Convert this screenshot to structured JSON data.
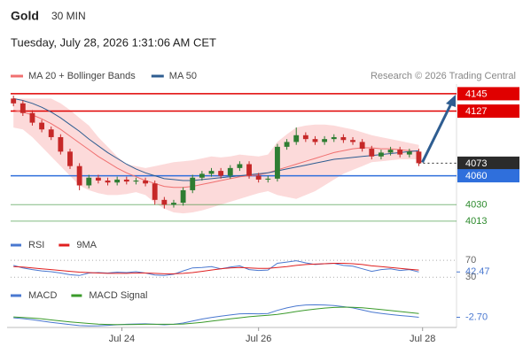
{
  "header": {
    "title": "Gold",
    "interval": "30 MIN",
    "timestamp": "Tuesday, July 28, 2026 1:31:06 AM CET",
    "credit": "Research © 2026 Trading Central"
  },
  "chart_data": [
    {
      "type": "candlestick",
      "xlim": [
        -0.3,
        47
      ],
      "xticks": [
        {
          "value": 11.5,
          "label": "Jul 24"
        },
        {
          "value": 26,
          "label": "Jul 26"
        },
        {
          "value": 43.4,
          "label": "Jul 28"
        }
      ],
      "ylim": [
        4000,
        4155
      ],
      "up_color": "#2e7d32",
      "down_color": "#c62828",
      "open": [
        4140,
        4135,
        4125,
        4115,
        4108,
        4100,
        4085,
        4070,
        4050,
        4058,
        4055,
        4053,
        4056,
        4054,
        4055,
        4052,
        4035,
        4030,
        4032,
        4045,
        4058,
        4062,
        4065,
        4060,
        4068,
        4072,
        4060,
        4056,
        4057,
        4090,
        4095,
        4102,
        4098,
        4095,
        4098,
        4100,
        4097,
        4095,
        4088,
        4080,
        4084,
        4087,
        4082,
        4085
      ],
      "high": [
        4143,
        4138,
        4128,
        4118,
        4111,
        4103,
        4088,
        4073,
        4061,
        4061,
        4058,
        4059,
        4059,
        4058,
        4058,
        4055,
        4038,
        4035,
        4048,
        4061,
        4065,
        4068,
        4068,
        4071,
        4075,
        4075,
        4063,
        4060,
        4093,
        4098,
        4110,
        4105,
        4101,
        4101,
        4103,
        4103,
        4100,
        4098,
        4091,
        4087,
        4090,
        4090,
        4088,
        4088
      ],
      "low": [
        4132,
        4122,
        4112,
        4105,
        4097,
        4082,
        4067,
        4045,
        4047,
        4052,
        4050,
        4050,
        4051,
        4051,
        4049,
        4030,
        4026,
        4027,
        4029,
        4042,
        4055,
        4059,
        4057,
        4057,
        4065,
        4057,
        4053,
        4053,
        4054,
        4087,
        4092,
        4095,
        4092,
        4092,
        4095,
        4094,
        4092,
        4085,
        4077,
        4077,
        4081,
        4079,
        4079,
        4070
      ],
      "close": [
        4135,
        4125,
        4115,
        4108,
        4100,
        4085,
        4070,
        4050,
        4058,
        4055,
        4053,
        4056,
        4054,
        4055,
        4052,
        4035,
        4030,
        4032,
        4045,
        4058,
        4062,
        4065,
        4060,
        4068,
        4072,
        4060,
        4056,
        4057,
        4090,
        4095,
        4102,
        4098,
        4095,
        4098,
        4100,
        4097,
        4095,
        4088,
        4080,
        4084,
        4087,
        4082,
        4085,
        4073
      ],
      "series": [
        {
          "name": "MA 20 + Bollinger Bands",
          "color": "#f07070",
          "band_color": "#fbd3d3",
          "values": [
            4128,
            4126,
            4123,
            4119,
            4114,
            4108,
            4101,
            4094,
            4087,
            4080,
            4074,
            4068,
            4063,
            4059,
            4055,
            4052,
            4049,
            4048,
            4048,
            4049,
            4051,
            4053,
            4055,
            4057,
            4059,
            4060,
            4061,
            4063,
            4066,
            4069,
            4072,
            4075,
            4078,
            4081,
            4084,
            4086,
            4088,
            4089,
            4089,
            4088,
            4088,
            4087,
            4086,
            4085
          ],
          "upper": [
            4140,
            4140,
            4140,
            4140,
            4140,
            4135,
            4128,
            4120,
            4112,
            4100,
            4090,
            4080,
            4072,
            4070,
            4068,
            4070,
            4072,
            4074,
            4075,
            4076,
            4078,
            4080,
            4079,
            4080,
            4082,
            4081,
            4080,
            4082,
            4095,
            4103,
            4110,
            4112,
            4113,
            4113,
            4112,
            4110,
            4108,
            4105,
            4102,
            4100,
            4098,
            4096,
            4094,
            4092
          ],
          "lower": [
            4110,
            4108,
            4100,
            4090,
            4080,
            4070,
            4060,
            4050,
            4045,
            4042,
            4040,
            4040,
            4041,
            4043,
            4040,
            4032,
            4026,
            4022,
            4021,
            4022,
            4024,
            4027,
            4030,
            4033,
            4036,
            4039,
            4042,
            4044,
            4040,
            4038,
            4036,
            4040,
            4044,
            4050,
            4056,
            4062,
            4066,
            4070,
            4074,
            4075,
            4076,
            4077,
            4077,
            4077
          ]
        },
        {
          "name": "MA 50",
          "color": "#2e5d91",
          "values": [
            4140,
            4138,
            4135,
            4131,
            4126,
            4120,
            4113,
            4106,
            4098,
            4091,
            4084,
            4078,
            4072,
            4067,
            4063,
            4060,
            4057,
            4056,
            4055,
            4055,
            4056,
            4057,
            4058,
            4059,
            4060,
            4061,
            4062,
            4063,
            4065,
            4067,
            4069,
            4071,
            4073,
            4075,
            4077,
            4078,
            4079,
            4080,
            4081,
            4082,
            4083,
            4084,
            4085,
            4086
          ]
        }
      ],
      "levels": [
        {
          "value": 4145,
          "color": "#e00000",
          "box": true,
          "style": "solid"
        },
        {
          "value": 4127,
          "color": "#e00000",
          "box": true,
          "style": "solid"
        },
        {
          "value": 4073,
          "color": "#2b2b2b",
          "box": true,
          "style": "dotted"
        },
        {
          "value": 4060,
          "color": "#2f6fdc",
          "box": true,
          "style": "solid"
        },
        {
          "value": 4030,
          "color": "#2e8b2e",
          "box": false,
          "style": "solid"
        },
        {
          "value": 4013,
          "color": "#2e8b2e",
          "box": false,
          "style": "solid"
        }
      ]
    },
    {
      "type": "line",
      "ylim": [
        20,
        85
      ],
      "yticks": [
        70,
        42.47,
        30
      ],
      "series": [
        {
          "name": "RSI",
          "color": "#4a78d0",
          "values": [
            58,
            52,
            48,
            45,
            43,
            40,
            36,
            34,
            40,
            41,
            40,
            42,
            41,
            43,
            40,
            35,
            34,
            37,
            45,
            52,
            53,
            55,
            50,
            54,
            57,
            48,
            46,
            47,
            63,
            66,
            69,
            64,
            60,
            62,
            63,
            58,
            56,
            50,
            44,
            48,
            50,
            46,
            48,
            42.47
          ]
        },
        {
          "name": "9MA",
          "color": "#e02020",
          "values": [
            55,
            54,
            52,
            50,
            48,
            46,
            44,
            42,
            41,
            40,
            39,
            39,
            39,
            40,
            40,
            39,
            38,
            38,
            39,
            41,
            44,
            47,
            50,
            52,
            53,
            52,
            51,
            51,
            53,
            55,
            58,
            60,
            61,
            62,
            63,
            63,
            62,
            60,
            57,
            55,
            53,
            51,
            49,
            47
          ]
        }
      ]
    },
    {
      "type": "line",
      "ylim": [
        -10,
        10
      ],
      "yticks": [
        {
          "value": -2.7,
          "label": "-2.70"
        }
      ],
      "series": [
        {
          "name": "MACD",
          "color": "#4a78d0",
          "values": [
            -3,
            -3.5,
            -4.2,
            -5,
            -5.8,
            -6.5,
            -7.2,
            -7.8,
            -8,
            -7.9,
            -7.6,
            -7.3,
            -7,
            -6.8,
            -6.7,
            -7,
            -7.3,
            -7,
            -6.2,
            -5,
            -3.8,
            -2.8,
            -2,
            -1.3,
            -0.6,
            -0.5,
            -0.6,
            -0.4,
            1.5,
            3,
            4.2,
            4.8,
            4.9,
            4.8,
            4.5,
            3.8,
            3,
            1.8,
            0.5,
            -0.3,
            -1,
            -1.6,
            -2.1,
            -2.7
          ]
        },
        {
          "name": "MACD Signal",
          "color": "#3a9a2a",
          "values": [
            -2.5,
            -2.8,
            -3.2,
            -3.7,
            -4.3,
            -4.9,
            -5.5,
            -6,
            -6.5,
            -6.9,
            -7.1,
            -7.2,
            -7.2,
            -7.1,
            -7,
            -7,
            -7,
            -7,
            -6.8,
            -6.4,
            -5.8,
            -5.1,
            -4.4,
            -3.7,
            -3,
            -2.4,
            -1.9,
            -1.5,
            -0.9,
            -0.1,
            0.8,
            1.6,
            2.3,
            2.9,
            3.3,
            3.5,
            3.4,
            3.1,
            2.6,
            2,
            1.4,
            0.8,
            0.2,
            -0.4
          ]
        }
      ]
    }
  ]
}
